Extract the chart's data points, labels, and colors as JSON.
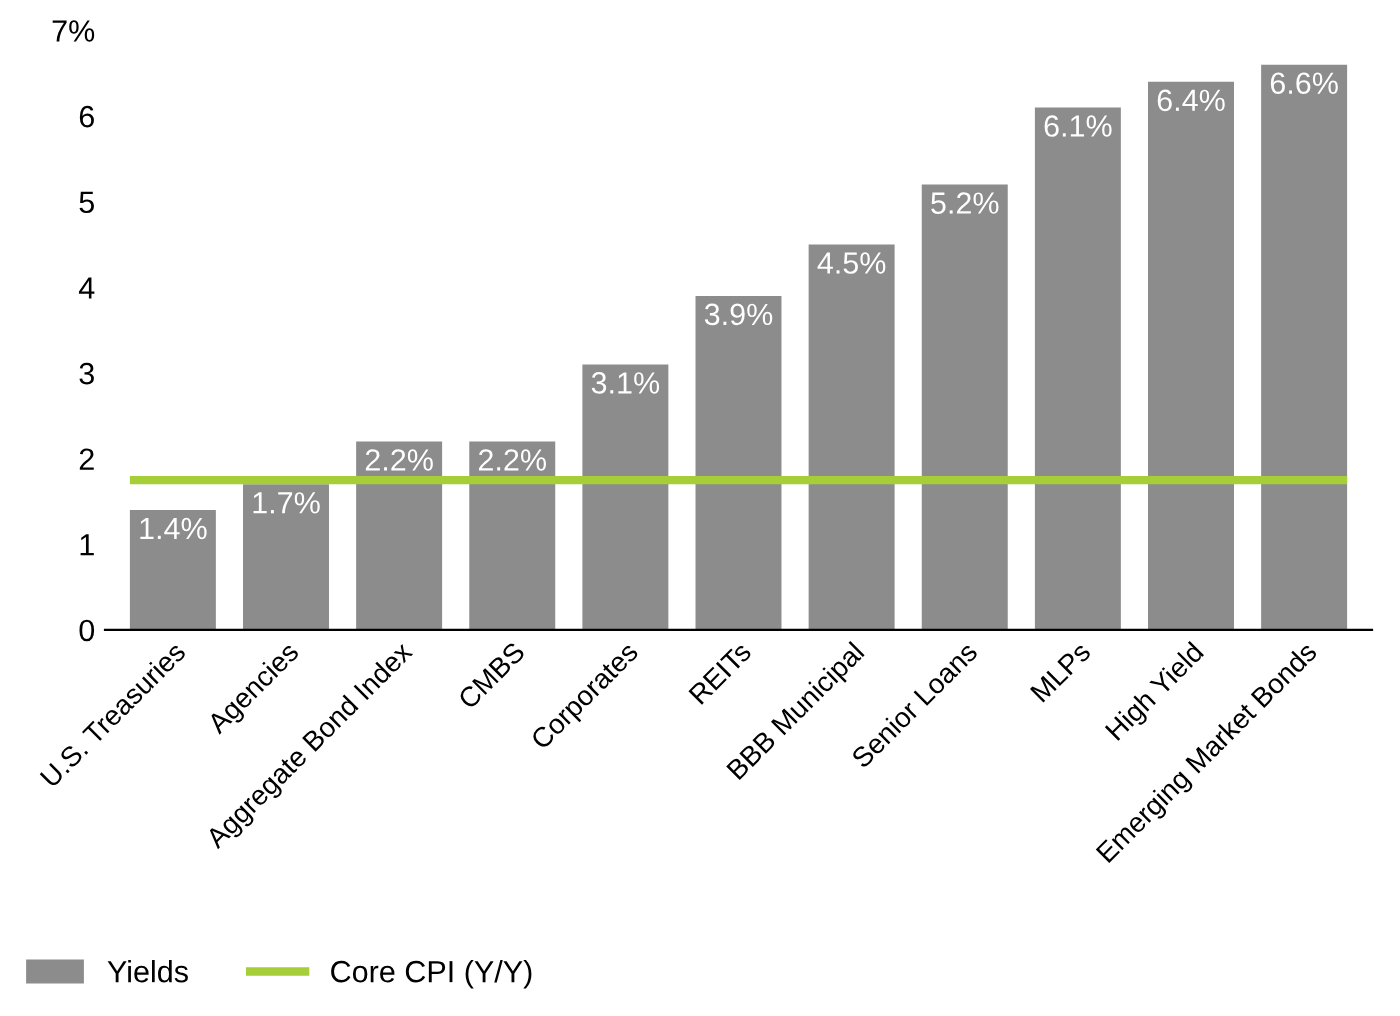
{
  "chart_data": {
    "type": "bar",
    "categories": [
      "U.S. Treasuries",
      "Agencies",
      "Aggregate Bond Index",
      "CMBS",
      "Corporates",
      "REITs",
      "BBB Municipal",
      "Senior Loans",
      "MLPs",
      "High Yield",
      "Emerging Market Bonds"
    ],
    "series": [
      {
        "name": "Yields",
        "color": "#8c8c8c",
        "values": [
          1.4,
          1.7,
          2.2,
          2.2,
          3.1,
          3.9,
          4.5,
          5.2,
          6.1,
          6.4,
          6.6
        ],
        "value_labels": [
          "1.4%",
          "1.7%",
          "2.2%",
          "2.2%",
          "3.1%",
          "3.9%",
          "4.5%",
          "5.2%",
          "6.1%",
          "6.4%",
          "6.6%"
        ]
      }
    ],
    "ref_lines": [
      {
        "axis": "y",
        "value": 1.75,
        "label": "Core CPI (Y/Y)",
        "color": "#a6ce39",
        "line_style": "solid"
      }
    ],
    "ylim": [
      0,
      7
    ],
    "yticks": [
      0,
      1,
      2,
      3,
      4,
      5,
      6,
      {
        "value": 7,
        "label": "7%"
      }
    ],
    "grid": false,
    "legend": "bottom left"
  }
}
